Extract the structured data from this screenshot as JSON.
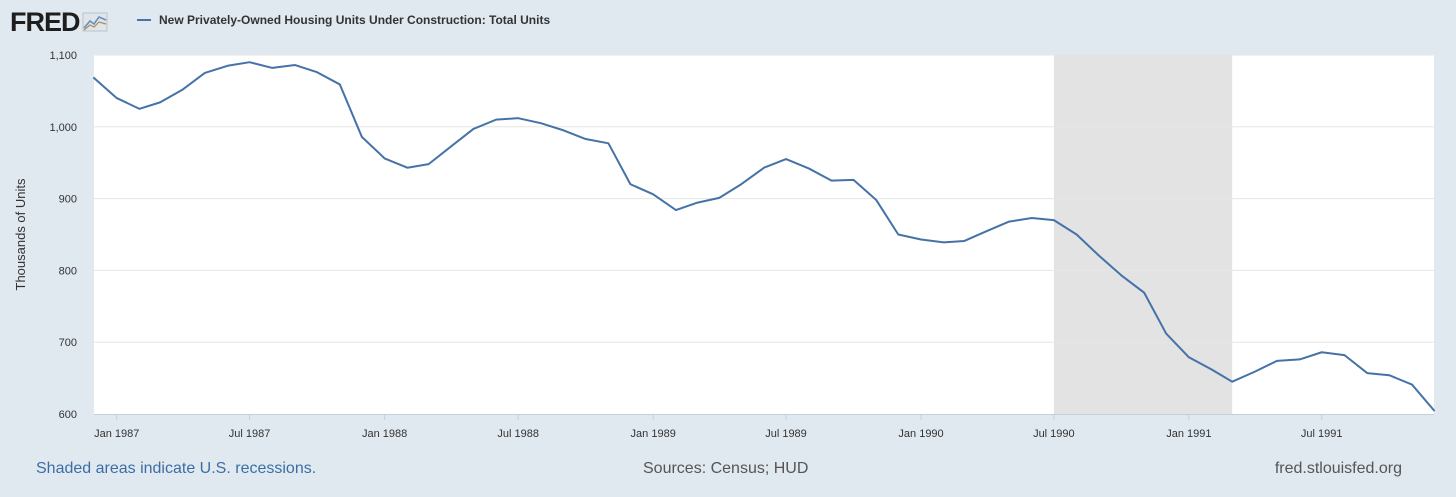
{
  "header": {
    "logo_text": "FRED",
    "legend_label": "New Privately-Owned Housing Units Under Construction: Total Units"
  },
  "footer": {
    "recession_note": "Shaded areas indicate U.S. recessions.",
    "sources": "Sources: Census; HUD",
    "site": "fred.stlouisfed.org"
  },
  "colors": {
    "series": "#4572a7",
    "recession": "#e3e3e3",
    "background": "#e1e9f0"
  },
  "chart_data": {
    "type": "line",
    "title": "",
    "ylabel": "Thousands of Units",
    "xlabel": "",
    "ylim": [
      600,
      1100
    ],
    "xlim": [
      "1986-12-01",
      "1991-12-01"
    ],
    "yticks": [
      600,
      700,
      800,
      900,
      "1,000",
      "1,100"
    ],
    "ytick_values": [
      600,
      700,
      800,
      900,
      1000,
      1100
    ],
    "xticks": [
      {
        "label": "Jan 1987",
        "date": "1987-01-01"
      },
      {
        "label": "Jul 1987",
        "date": "1987-07-01"
      },
      {
        "label": "Jan 1988",
        "date": "1988-01-01"
      },
      {
        "label": "Jul 1988",
        "date": "1988-07-01"
      },
      {
        "label": "Jan 1989",
        "date": "1989-01-01"
      },
      {
        "label": "Jul 1989",
        "date": "1989-07-01"
      },
      {
        "label": "Jan 1990",
        "date": "1990-01-01"
      },
      {
        "label": "Jul 1990",
        "date": "1990-07-01"
      },
      {
        "label": "Jan 1991",
        "date": "1991-01-01"
      },
      {
        "label": "Jul 1991",
        "date": "1991-07-01"
      }
    ],
    "grid": true,
    "recessions": [
      {
        "start": "1990-07-01",
        "end": "1991-03-01"
      }
    ],
    "series": [
      {
        "name": "New Privately-Owned Housing Units Under Construction: Total Units",
        "x": [
          "1986-12",
          "1987-01",
          "1987-02",
          "1987-03",
          "1987-04",
          "1987-05",
          "1987-06",
          "1987-07",
          "1987-08",
          "1987-09",
          "1987-10",
          "1987-11",
          "1987-12",
          "1988-01",
          "1988-02",
          "1988-03",
          "1988-04",
          "1988-05",
          "1988-06",
          "1988-07",
          "1988-08",
          "1988-09",
          "1988-10",
          "1988-11",
          "1988-12",
          "1989-01",
          "1989-02",
          "1989-03",
          "1989-04",
          "1989-05",
          "1989-06",
          "1989-07",
          "1989-08",
          "1989-09",
          "1989-10",
          "1989-11",
          "1989-12",
          "1990-01",
          "1990-02",
          "1990-03",
          "1990-04",
          "1990-05",
          "1990-06",
          "1990-07",
          "1990-08",
          "1990-09",
          "1990-10",
          "1990-11",
          "1990-12",
          "1991-01",
          "1991-02",
          "1991-03",
          "1991-04",
          "1991-05",
          "1991-06",
          "1991-07",
          "1991-08",
          "1991-09",
          "1991-10",
          "1991-11",
          "1991-12"
        ],
        "values": [
          1068,
          1040,
          1025,
          1034,
          1052,
          1075,
          1085,
          1090,
          1082,
          1086,
          1076,
          1059,
          986,
          956,
          943,
          948,
          973,
          997,
          1010,
          1012,
          1005,
          995,
          983,
          977,
          920,
          906,
          884,
          894,
          901,
          920,
          943,
          955,
          942,
          925,
          926,
          898,
          850,
          843,
          839,
          841,
          855,
          868,
          873,
          870,
          850,
          820,
          793,
          769,
          712,
          679,
          662,
          645,
          659,
          674,
          676,
          686,
          682,
          657,
          654,
          641,
          605
        ]
      }
    ]
  }
}
